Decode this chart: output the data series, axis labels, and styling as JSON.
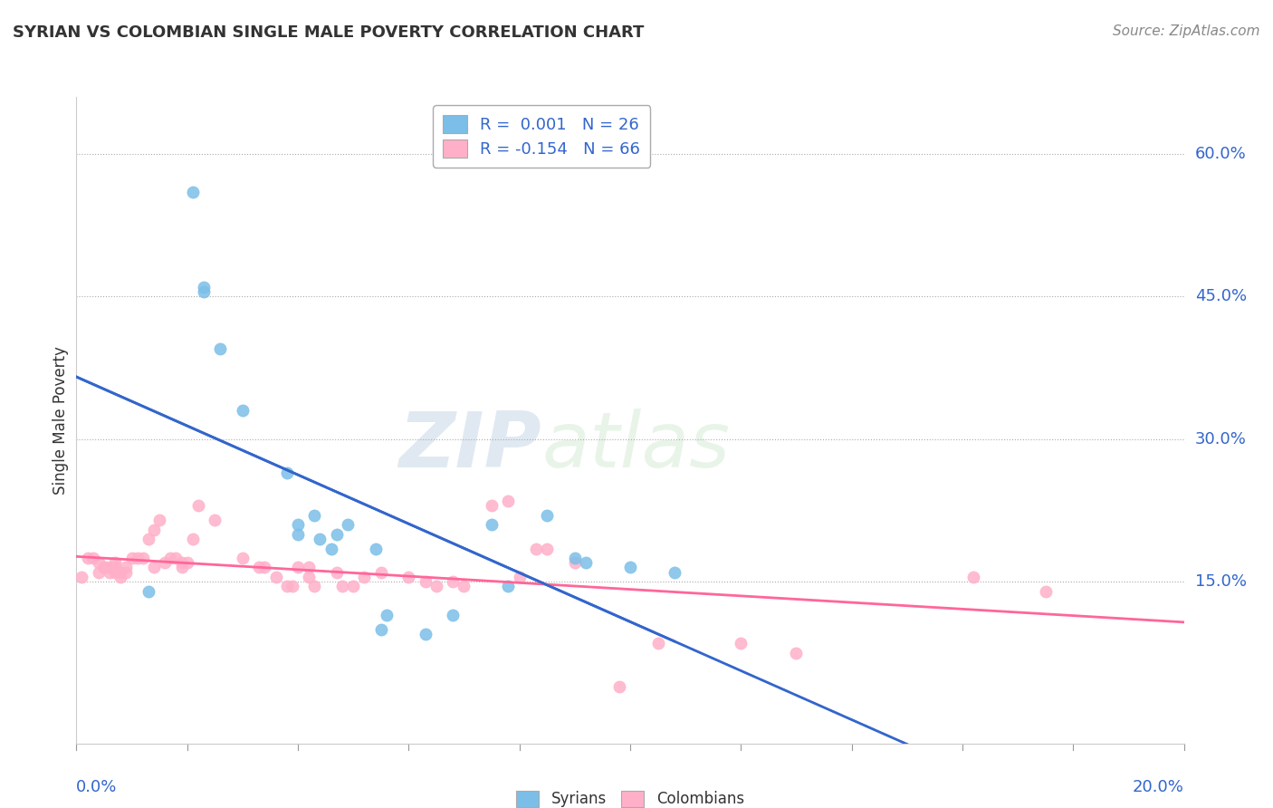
{
  "title": "SYRIAN VS COLOMBIAN SINGLE MALE POVERTY CORRELATION CHART",
  "source": "Source: ZipAtlas.com",
  "ylabel": "Single Male Poverty",
  "y_ticks": [
    0.15,
    0.3,
    0.45,
    0.6
  ],
  "y_tick_labels": [
    "15.0%",
    "30.0%",
    "45.0%",
    "60.0%"
  ],
  "xlim": [
    0.0,
    0.2
  ],
  "ylim": [
    -0.02,
    0.66
  ],
  "legend_r1": "R =  0.001   N = 26",
  "legend_r2": "R = -0.154   N = 66",
  "syrian_color": "#7BBFE8",
  "colombian_color": "#FFB0C8",
  "syrian_line_color": "#3366CC",
  "colombian_line_color": "#FF6699",
  "watermark_zip": "ZIP",
  "watermark_atlas": "atlas",
  "syrians_x": [
    0.013,
    0.021,
    0.023,
    0.023,
    0.026,
    0.03,
    0.038,
    0.04,
    0.04,
    0.043,
    0.044,
    0.046,
    0.047,
    0.049,
    0.054,
    0.055,
    0.056,
    0.063,
    0.068,
    0.075,
    0.078,
    0.085,
    0.09,
    0.092,
    0.1,
    0.108
  ],
  "syrians_y": [
    0.14,
    0.56,
    0.455,
    0.46,
    0.395,
    0.33,
    0.265,
    0.2,
    0.21,
    0.22,
    0.195,
    0.185,
    0.2,
    0.21,
    0.185,
    0.1,
    0.115,
    0.095,
    0.115,
    0.21,
    0.145,
    0.22,
    0.175,
    0.17,
    0.165,
    0.16
  ],
  "colombians_x": [
    0.001,
    0.002,
    0.003,
    0.004,
    0.004,
    0.005,
    0.005,
    0.005,
    0.006,
    0.006,
    0.007,
    0.007,
    0.007,
    0.007,
    0.008,
    0.008,
    0.009,
    0.009,
    0.01,
    0.011,
    0.012,
    0.013,
    0.014,
    0.014,
    0.015,
    0.016,
    0.017,
    0.018,
    0.019,
    0.019,
    0.02,
    0.021,
    0.022,
    0.025,
    0.03,
    0.033,
    0.034,
    0.036,
    0.038,
    0.039,
    0.04,
    0.042,
    0.042,
    0.043,
    0.047,
    0.048,
    0.05,
    0.052,
    0.055,
    0.06,
    0.063,
    0.065,
    0.068,
    0.07,
    0.075,
    0.078,
    0.08,
    0.083,
    0.085,
    0.09,
    0.098,
    0.105,
    0.12,
    0.13,
    0.162,
    0.175
  ],
  "colombians_y": [
    0.155,
    0.175,
    0.175,
    0.16,
    0.17,
    0.165,
    0.165,
    0.165,
    0.16,
    0.165,
    0.16,
    0.165,
    0.165,
    0.17,
    0.16,
    0.155,
    0.165,
    0.16,
    0.175,
    0.175,
    0.175,
    0.195,
    0.165,
    0.205,
    0.215,
    0.17,
    0.175,
    0.175,
    0.165,
    0.17,
    0.17,
    0.195,
    0.23,
    0.215,
    0.175,
    0.165,
    0.165,
    0.155,
    0.145,
    0.145,
    0.165,
    0.155,
    0.165,
    0.145,
    0.16,
    0.145,
    0.145,
    0.155,
    0.16,
    0.155,
    0.15,
    0.145,
    0.15,
    0.145,
    0.23,
    0.235,
    0.155,
    0.185,
    0.185,
    0.17,
    0.04,
    0.085,
    0.085,
    0.075,
    0.155,
    0.14
  ]
}
